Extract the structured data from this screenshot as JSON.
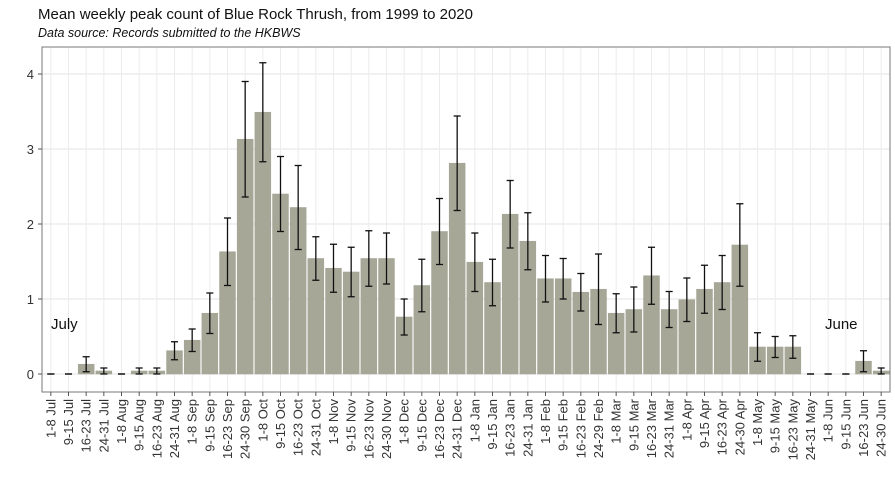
{
  "chart_data": {
    "type": "bar",
    "title": "Mean weekly peak count of Blue Rock Thrush, from 1999 to 2020",
    "subtitle": "Data source: Records submitted to the HKBWS",
    "annotations": [
      "July",
      "June"
    ],
    "categories": [
      "1-8 Jul",
      "9-15 Jul",
      "16-23 Jul",
      "24-31 Jul",
      "1-8 Aug",
      "9-15 Aug",
      "16-23 Aug",
      "24-31 Aug",
      "1-8 Sep",
      "9-15 Sep",
      "16-23 Sep",
      "24-30 Sep",
      "1-8 Oct",
      "9-15 Oct",
      "16-23 Oct",
      "24-31 Oct",
      "1-8 Nov",
      "9-15 Nov",
      "16-23 Nov",
      "24-30 Nov",
      "1-8 Dec",
      "9-15 Dec",
      "16-23 Dec",
      "24-31 Dec",
      "1-8 Jan",
      "9-15 Jan",
      "16-23 Jan",
      "24-31 Jan",
      "1-8 Feb",
      "9-15 Feb",
      "16-23 Feb",
      "24-29 Feb",
      "1-8 Mar",
      "9-15 Mar",
      "16-23 Mar",
      "24-31 Mar",
      "1-8 Apr",
      "9-15 Apr",
      "16-23 Apr",
      "24-30 Apr",
      "1-8 May",
      "9-15 May",
      "16-23 May",
      "24-31 May",
      "1-8 Jun",
      "9-15 Jun",
      "16-23 Jun",
      "24-30 Jun"
    ],
    "values": [
      0,
      0,
      0.13,
      0.04,
      0,
      0.04,
      0.04,
      0.31,
      0.45,
      0.81,
      1.63,
      3.13,
      3.49,
      2.4,
      2.22,
      1.54,
      1.41,
      1.36,
      1.54,
      1.54,
      0.76,
      1.18,
      1.9,
      2.81,
      1.49,
      1.22,
      2.13,
      1.77,
      1.27,
      1.27,
      1.09,
      1.13,
      0.81,
      0.86,
      1.31,
      0.86,
      0.99,
      1.13,
      1.22,
      1.72,
      0.36,
      0.36,
      0.36,
      0,
      0,
      0,
      0.17,
      0.04
    ],
    "errors": [
      0,
      0,
      0.1,
      0.04,
      0,
      0.04,
      0.04,
      0.12,
      0.15,
      0.27,
      0.45,
      0.77,
      0.66,
      0.5,
      0.56,
      0.29,
      0.32,
      0.33,
      0.37,
      0.34,
      0.24,
      0.35,
      0.44,
      0.63,
      0.39,
      0.31,
      0.45,
      0.38,
      0.31,
      0.27,
      0.25,
      0.47,
      0.26,
      0.3,
      0.38,
      0.24,
      0.29,
      0.32,
      0.36,
      0.55,
      0.19,
      0.14,
      0.15,
      0,
      0,
      0,
      0.14,
      0.04
    ],
    "color": "#a6a797",
    "ylim": [
      -0.24,
      4.36
    ],
    "yticks": [
      0,
      1,
      2,
      3,
      4
    ],
    "grid": true
  }
}
